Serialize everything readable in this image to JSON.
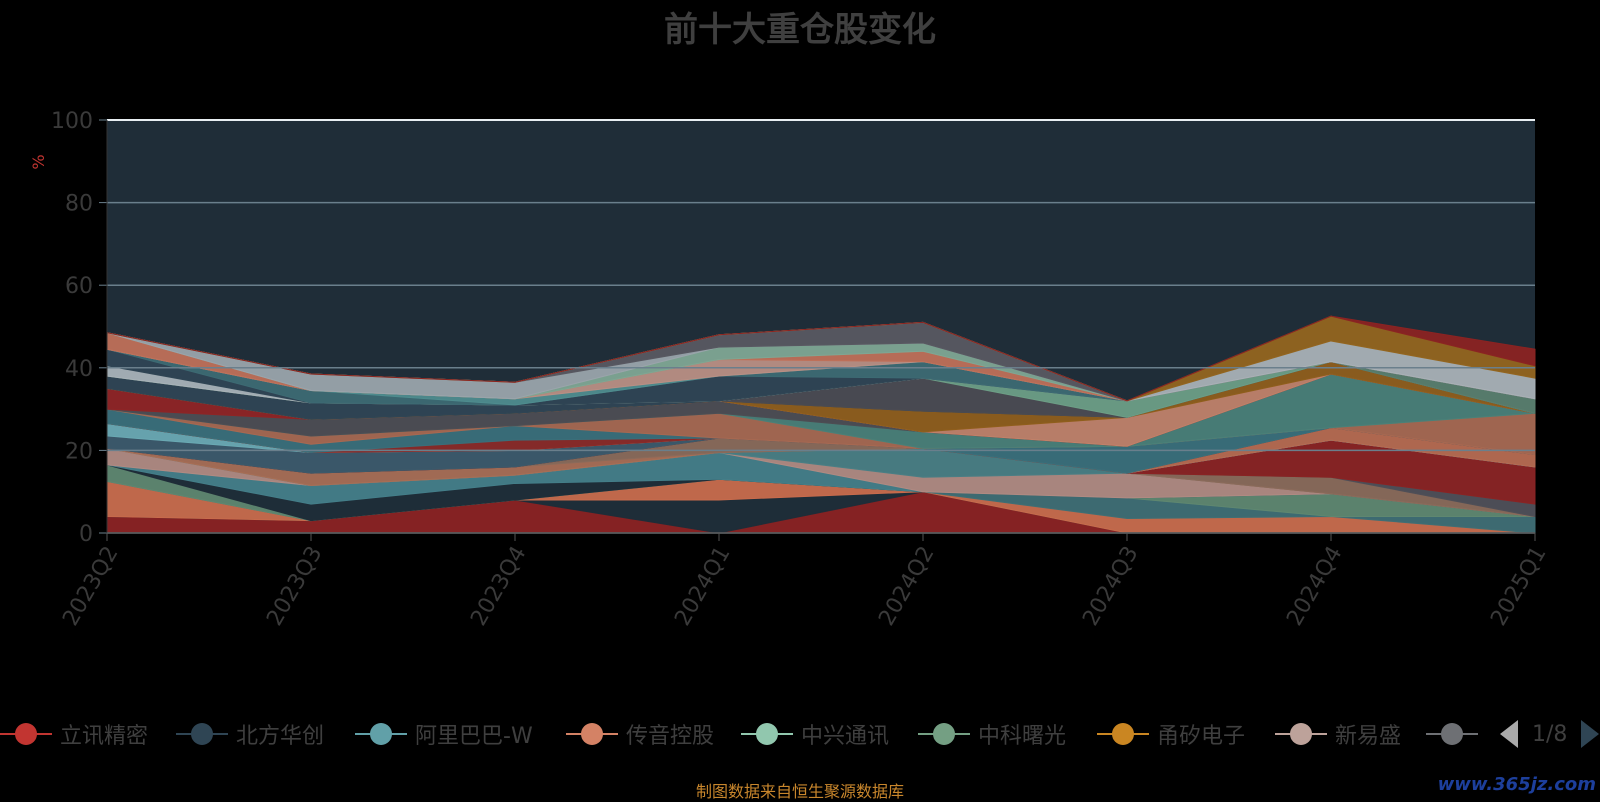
{
  "title": "前十大重仓股变化",
  "source": "制图数据来自恒生聚源数据库",
  "watermark": "www.365jz.com",
  "pager": {
    "text": "1/8"
  },
  "colors": {
    "background": "#000000",
    "plot_background": "#1f2d38",
    "grid": "#6a7f8c",
    "axis_text": "#3a3a3a",
    "unit_text": "#c23531"
  },
  "legend": [
    {
      "name": "立讯精密",
      "color": "#c23531"
    },
    {
      "name": "北方华创",
      "color": "#2f4554"
    },
    {
      "name": "阿里巴巴-W",
      "color": "#61a0a8"
    },
    {
      "name": "传音控股",
      "color": "#d48265"
    },
    {
      "name": "中兴通讯",
      "color": "#91c7ae"
    },
    {
      "name": "中科曙光",
      "color": "#749f83"
    },
    {
      "name": "甬矽电子",
      "color": "#ca8622"
    },
    {
      "name": "新易盛",
      "color": "#bda29a"
    },
    {
      "name": "",
      "color": "#6e7074"
    }
  ],
  "chart_data": {
    "type": "area",
    "stacked": true,
    "categories": [
      "2023Q2",
      "2023Q3",
      "2023Q4",
      "2024Q1",
      "2024Q2",
      "2024Q3",
      "2024Q4",
      "2025Q1"
    ],
    "ylabel": "%",
    "ylim": [
      0,
      100
    ],
    "yticks": [
      0,
      20,
      40,
      60,
      80,
      100
    ],
    "grid": true,
    "legend_position": "bottom",
    "series": [
      {
        "name": "立讯精密",
        "color": "#8b2222",
        "values": [
          4,
          3,
          8,
          0,
          10,
          0,
          0,
          0
        ]
      },
      {
        "name": "北方华创",
        "color": "#1f2d38",
        "values": [
          0,
          0,
          0,
          8,
          0,
          0,
          0,
          0
        ]
      },
      {
        "name": "",
        "color": "#c86b4c",
        "values": [
          8.5,
          0,
          0,
          5,
          0,
          3.5,
          4,
          0
        ]
      },
      {
        "name": "",
        "color": "#3f6e74",
        "values": [
          0,
          0,
          0,
          0,
          0,
          5,
          0,
          4
        ]
      },
      {
        "name": "",
        "color": "#5f8770",
        "values": [
          4,
          0,
          0,
          0,
          0,
          0,
          5.5,
          0
        ]
      },
      {
        "name": "",
        "color": "#1f2d38",
        "values": [
          0,
          4,
          4,
          0,
          0,
          0,
          0,
          0
        ]
      },
      {
        "name": "",
        "color": "#447e89",
        "values": [
          0,
          4.5,
          2,
          6.5,
          0,
          0,
          0,
          0
        ]
      },
      {
        "name": "",
        "color": "#b08a82",
        "values": [
          4,
          0,
          0,
          0,
          3.5,
          6,
          0,
          0
        ]
      },
      {
        "name": "",
        "color": "#4a7e84",
        "values": [
          0,
          0,
          0,
          0,
          7,
          0,
          0,
          0
        ]
      },
      {
        "name": "",
        "color": "#a86e55",
        "values": [
          0,
          3,
          2,
          0,
          0,
          0,
          0,
          0
        ]
      },
      {
        "name": "",
        "color": "#8a6a5a",
        "values": [
          0,
          0,
          0,
          3.5,
          0,
          0,
          4,
          0
        ]
      },
      {
        "name": "",
        "color": "#4f4f57",
        "values": [
          0,
          0,
          0,
          0,
          0,
          0,
          0,
          3
        ]
      },
      {
        "name": "",
        "color": "#8a2323",
        "values": [
          0,
          0,
          0,
          0,
          0,
          0,
          9,
          9
        ]
      },
      {
        "name": "",
        "color": "#3c5a6b",
        "values": [
          3,
          5,
          4,
          0,
          0,
          0,
          0,
          0
        ]
      },
      {
        "name": "",
        "color": "#6aa9b3",
        "values": [
          3,
          0,
          0,
          0,
          0,
          0,
          0,
          0
        ]
      },
      {
        "name": "",
        "color": "#b66a50",
        "values": [
          0,
          0,
          0,
          0,
          0,
          0,
          3,
          3
        ]
      },
      {
        "name": "",
        "color": "#8a2a28",
        "values": [
          0,
          0,
          2.5,
          0,
          0,
          0,
          0,
          0
        ]
      },
      {
        "name": "",
        "color": "#3a6f7a",
        "values": [
          3.5,
          2,
          3.5,
          0,
          0,
          6.5,
          0,
          0
        ]
      },
      {
        "name": "",
        "color": "#a76851",
        "values": [
          0,
          2,
          0,
          6,
          0,
          0,
          0,
          10
        ]
      },
      {
        "name": "",
        "color": "#4a8078",
        "values": [
          0,
          0,
          0,
          0,
          4,
          0,
          13,
          0
        ]
      },
      {
        "name": "",
        "color": "#4d4d53",
        "values": [
          0,
          4,
          3,
          3,
          0,
          0,
          0,
          0
        ]
      },
      {
        "name": "",
        "color": "#8f2425",
        "values": [
          5,
          0,
          0,
          0,
          0,
          0,
          0,
          0
        ]
      },
      {
        "name": "",
        "color": "#c0826a",
        "values": [
          0,
          0,
          0,
          0,
          0,
          7,
          0,
          0
        ]
      },
      {
        "name": "",
        "color": "#8f5e1c",
        "values": [
          0,
          0,
          0,
          0,
          5,
          0,
          3,
          0
        ]
      },
      {
        "name": "",
        "color": "#2f4554",
        "values": [
          3,
          4,
          2,
          0,
          0,
          0,
          0,
          0
        ]
      },
      {
        "name": "",
        "color": "#4b4b52",
        "values": [
          0,
          0,
          0,
          0,
          8,
          0,
          0,
          0
        ]
      },
      {
        "name": "",
        "color": "#6d9e86",
        "values": [
          0,
          0,
          0,
          0,
          0,
          4,
          0,
          0
        ]
      },
      {
        "name": "",
        "color": "#5a7e6e",
        "values": [
          0,
          0,
          0,
          0,
          0,
          0,
          0,
          3.5
        ]
      },
      {
        "name": "",
        "color": "#a8b2b8",
        "values": [
          2.5,
          0,
          0,
          0,
          0,
          0,
          0,
          0
        ]
      },
      {
        "name": "",
        "color": "#2f4554",
        "values": [
          4,
          0,
          0,
          6,
          0,
          0,
          0,
          0
        ]
      },
      {
        "name": "",
        "color": "#3d6a73",
        "values": [
          0,
          3,
          0,
          0,
          4,
          0,
          0,
          0
        ]
      },
      {
        "name": "",
        "color": "#4f8c8e",
        "values": [
          0,
          0,
          1.5,
          0,
          0,
          0,
          0,
          0
        ]
      },
      {
        "name": "",
        "color": "#b98f84",
        "values": [
          0,
          0,
          0,
          4,
          0,
          0,
          0,
          0
        ]
      },
      {
        "name": "",
        "color": "#bf7059",
        "values": [
          4,
          0,
          0,
          0,
          2.5,
          0,
          0,
          0
        ]
      },
      {
        "name": "",
        "color": "#7fa693",
        "values": [
          0,
          0,
          0,
          3,
          2,
          0,
          0,
          0
        ]
      },
      {
        "name": "",
        "color": "#9aa4ab",
        "values": [
          0,
          4,
          4,
          0,
          0,
          0,
          0,
          0
        ]
      },
      {
        "name": "",
        "color": "#585861",
        "values": [
          0,
          0,
          0,
          3,
          5,
          0,
          0,
          0
        ]
      },
      {
        "name": "",
        "color": "#a9b1b6",
        "values": [
          0,
          0,
          0,
          0,
          0,
          0,
          5,
          5
        ]
      },
      {
        "name": "",
        "color": "#93651f",
        "values": [
          0,
          0,
          0,
          0,
          0,
          0,
          6,
          3
        ]
      },
      {
        "name": "",
        "color": "#8b2322",
        "values": [
          0,
          0,
          0,
          0,
          0,
          0,
          0,
          4
        ]
      }
    ]
  }
}
